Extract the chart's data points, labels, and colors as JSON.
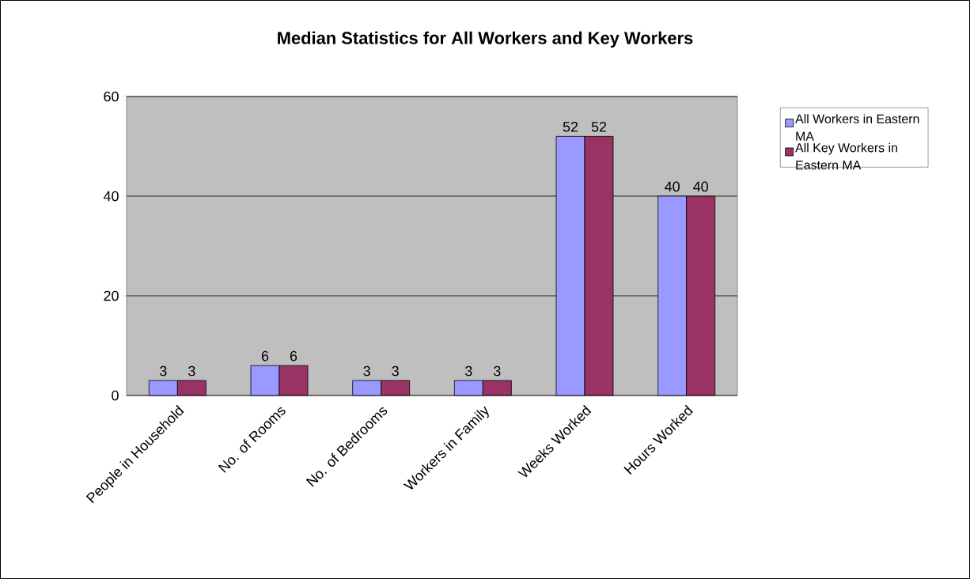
{
  "chart_data": {
    "type": "bar",
    "title": "Median Statistics for All Workers and Key Workers",
    "categories": [
      "People in Household",
      "No. of Rooms",
      "No. of Bedrooms",
      "Workers in Family",
      "Weeks Worked",
      "Hours Worked"
    ],
    "series": [
      {
        "name": "All Workers in Eastern MA",
        "color": "#9999ff",
        "values": [
          3,
          6,
          3,
          3,
          52,
          40
        ]
      },
      {
        "name": "All Key Workers in Eastern MA",
        "color": "#993366",
        "values": [
          3,
          6,
          3,
          3,
          52,
          40
        ]
      }
    ],
    "ylim": [
      0,
      60
    ],
    "yticks": [
      0,
      20,
      40,
      60
    ],
    "grid": "y",
    "legend": "right",
    "data_labels": true
  }
}
